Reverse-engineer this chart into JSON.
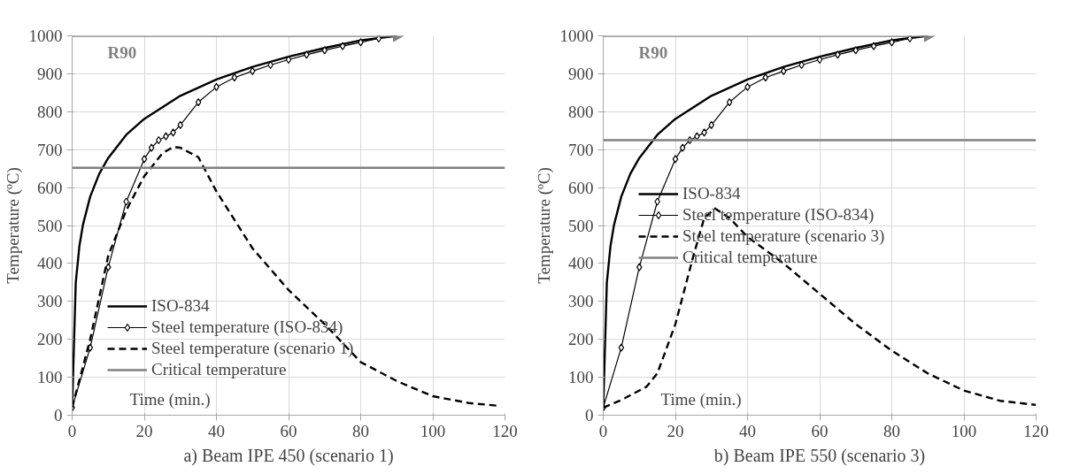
{
  "chart_data": [
    {
      "type": "line",
      "title": "a) Beam IPE 450 (scenario 1)",
      "xlabel": "Time (min.)",
      "ylabel": "Temperature (ºC)",
      "xlim": [
        0,
        120
      ],
      "xticks": [
        0,
        20,
        40,
        60,
        80,
        100,
        120
      ],
      "ylim": [
        0,
        1000
      ],
      "yticks": [
        0,
        100,
        200,
        300,
        400,
        500,
        600,
        700,
        800,
        900,
        1000
      ],
      "grid": true,
      "legend": "bottom left",
      "annotations": [
        "R90"
      ],
      "series": [
        {
          "name": "ISO-834",
          "color": "#000000",
          "line_style": "solid",
          "marker": "none",
          "x": [
            0,
            1,
            2,
            3,
            5,
            7.5,
            10,
            15,
            20,
            30,
            40,
            50,
            60,
            70,
            80,
            90
          ],
          "values": [
            20,
            349,
            445,
            502,
            576,
            636,
            678,
            739,
            781,
            842,
            885,
            918,
            945,
            968,
            988,
            1000
          ]
        },
        {
          "name": "Steel temperature (ISO-834)",
          "color": "#000000",
          "line_style": "solid",
          "marker": "diamond",
          "x": [
            0,
            5,
            10,
            15,
            20,
            22,
            24,
            26,
            28,
            30,
            35,
            40,
            45,
            50,
            55,
            60,
            65,
            70,
            75,
            80,
            85
          ],
          "values": [
            20,
            178,
            390,
            563,
            675,
            705,
            725,
            735,
            745,
            765,
            825,
            865,
            890,
            907,
            923,
            937,
            950,
            962,
            973,
            983,
            993
          ]
        },
        {
          "color": "#808080",
          "line_style": "solid",
          "x": [
            0,
            90
          ],
          "values": [
            1000,
            1000
          ]
        },
        {
          "name": "Steel temperature (scenario 1)",
          "color": "#000000",
          "line_style": "dashed",
          "marker": "none",
          "x": [
            0,
            5,
            10,
            15,
            20,
            25,
            28,
            30,
            35,
            40,
            50,
            60,
            70,
            80,
            90,
            100,
            110,
            118
          ],
          "values": [
            20,
            200,
            420,
            540,
            630,
            690,
            707,
            705,
            680,
            590,
            440,
            330,
            240,
            140,
            90,
            50,
            32,
            25
          ]
        },
        {
          "name": "Critical temperature",
          "color": "#808080",
          "line_style": "solid",
          "marker": "none",
          "x": [
            0,
            120
          ],
          "values": [
            652,
            652
          ]
        }
      ]
    },
    {
      "type": "line",
      "title": "b) Beam IPE 550 (scenario 3)",
      "xlabel": "Time (min.)",
      "ylabel": "Temperature (ºC)",
      "xlim": [
        0,
        120
      ],
      "xticks": [
        0,
        20,
        40,
        60,
        80,
        100,
        120
      ],
      "ylim": [
        0,
        1000
      ],
      "yticks": [
        0,
        100,
        200,
        300,
        400,
        500,
        600,
        700,
        800,
        900,
        1000
      ],
      "grid": true,
      "legend": "left",
      "annotations": [
        "R90"
      ],
      "series": [
        {
          "name": "ISO-834",
          "color": "#000000",
          "line_style": "solid",
          "marker": "none",
          "x": [
            0,
            1,
            2,
            3,
            5,
            7.5,
            10,
            15,
            20,
            30,
            40,
            50,
            60,
            70,
            80,
            90
          ],
          "values": [
            20,
            349,
            445,
            502,
            576,
            636,
            678,
            739,
            781,
            842,
            885,
            918,
            945,
            968,
            988,
            1000
          ]
        },
        {
          "name": "Steel temperature (ISO-834)",
          "color": "#000000",
          "line_style": "solid",
          "marker": "diamond",
          "x": [
            0,
            5,
            10,
            15,
            20,
            22,
            24,
            26,
            28,
            30,
            35,
            40,
            45,
            50,
            55,
            60,
            65,
            70,
            75,
            80,
            85
          ],
          "values": [
            20,
            178,
            390,
            563,
            675,
            705,
            725,
            735,
            745,
            765,
            825,
            865,
            890,
            907,
            923,
            937,
            950,
            962,
            973,
            983,
            993
          ]
        },
        {
          "color": "#808080",
          "line_style": "solid",
          "x": [
            0,
            90
          ],
          "values": [
            1000,
            1000
          ]
        },
        {
          "name": "Steel temperature (scenario 3)",
          "color": "#000000",
          "line_style": "dashed",
          "marker": "none",
          "x": [
            0,
            5,
            12,
            15,
            20,
            25,
            28,
            31,
            35,
            40,
            50,
            60,
            70,
            80,
            90,
            100,
            110,
            120
          ],
          "values": [
            20,
            40,
            75,
            110,
            240,
            420,
            520,
            545,
            520,
            470,
            400,
            320,
            240,
            170,
            110,
            65,
            38,
            27
          ]
        },
        {
          "name": "Critical temperature",
          "color": "#808080",
          "line_style": "solid",
          "marker": "none",
          "x": [
            0,
            120
          ],
          "values": [
            725,
            725
          ]
        }
      ]
    }
  ]
}
